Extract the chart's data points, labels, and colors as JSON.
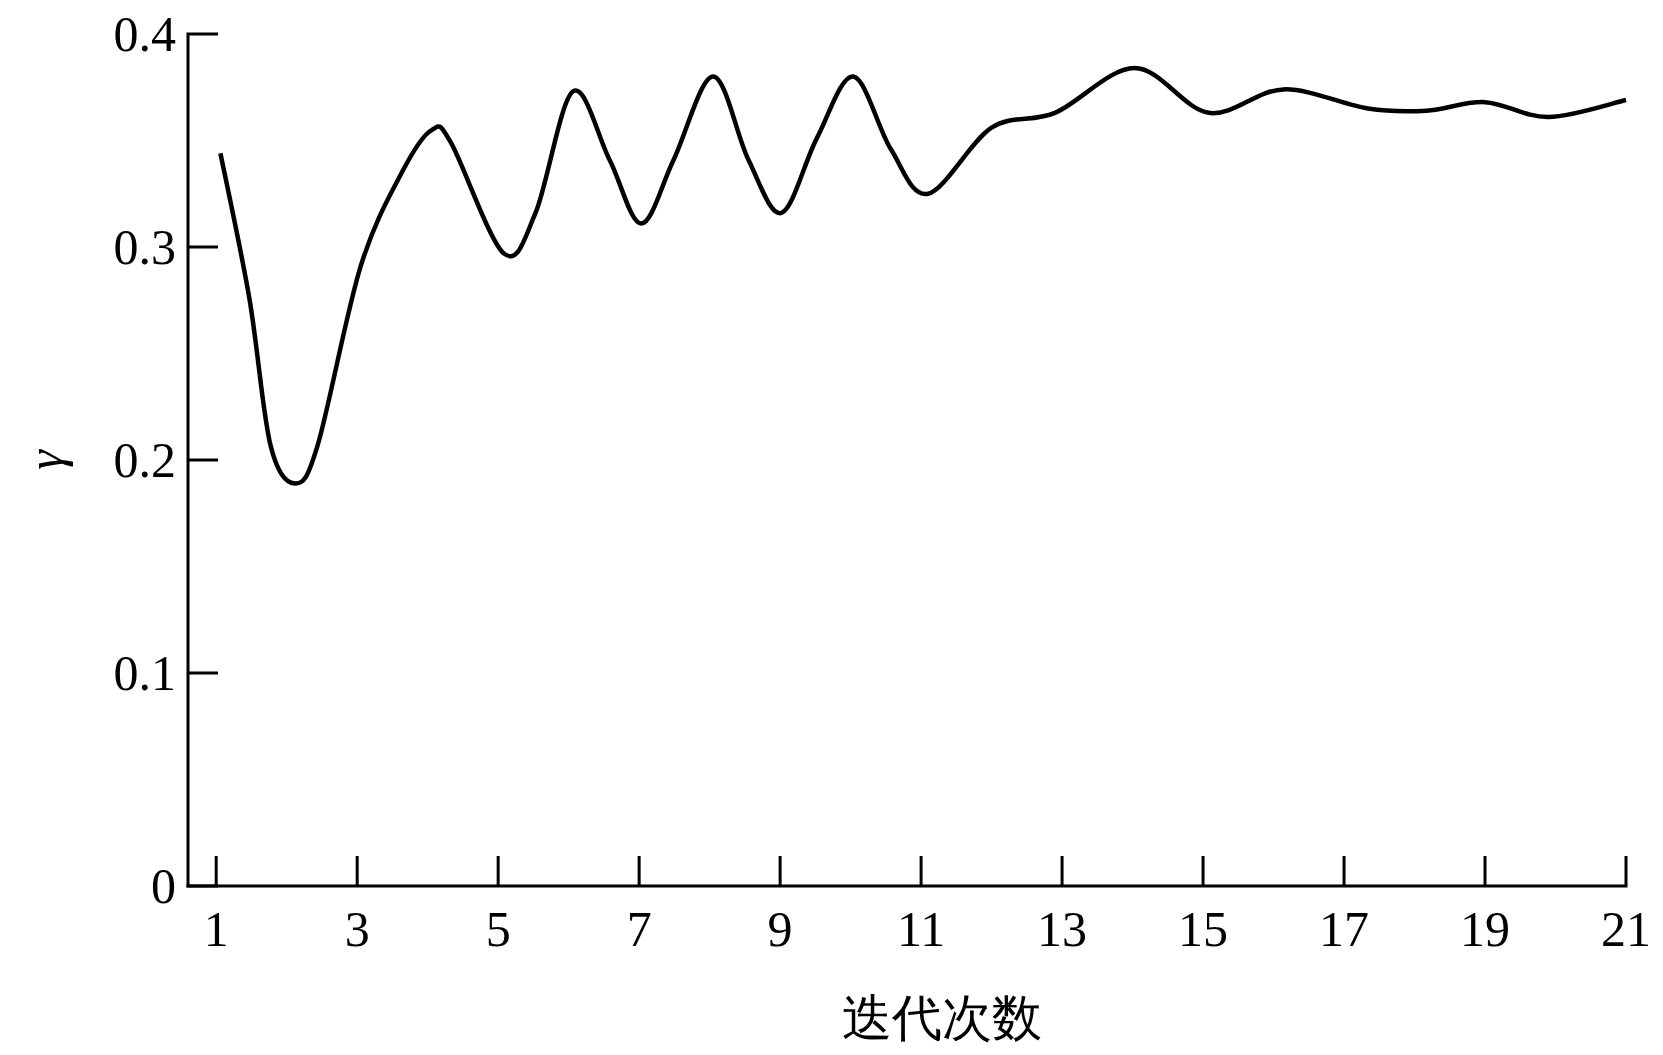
{
  "chart_data": {
    "type": "line",
    "xlabel": "迭代次数",
    "ylabel": "γ",
    "xlim": [
      0.6,
      21
    ],
    "ylim": [
      0,
      0.4
    ],
    "xticks": [
      1,
      3,
      5,
      7,
      9,
      11,
      13,
      15,
      17,
      19,
      21
    ],
    "yticks": [
      0,
      0.1,
      0.2,
      0.3,
      0.4
    ],
    "grid": false,
    "marker": "none",
    "line_style": "solid",
    "series": [
      {
        "color": "#000000",
        "x": [
          1.06,
          1.47,
          1.77,
          2.12,
          2.44,
          3.05,
          3.65,
          4.06,
          4.33,
          5.08,
          5.53,
          6.06,
          6.58,
          7.03,
          7.49,
          8.05,
          8.55,
          9.02,
          9.52,
          10.04,
          10.57,
          11.1,
          12.0,
          12.9,
          14.03,
          15.08,
          16.14,
          17.34,
          18.17,
          19.0,
          19.9,
          21.0
        ],
        "values": [
          0.344,
          0.276,
          0.207,
          0.189,
          0.207,
          0.291,
          0.336,
          0.355,
          0.349,
          0.297,
          0.316,
          0.373,
          0.341,
          0.311,
          0.341,
          0.38,
          0.341,
          0.316,
          0.351,
          0.38,
          0.346,
          0.325,
          0.356,
          0.363,
          0.384,
          0.363,
          0.374,
          0.365,
          0.364,
          0.368,
          0.361,
          0.369
        ]
      }
    ]
  }
}
